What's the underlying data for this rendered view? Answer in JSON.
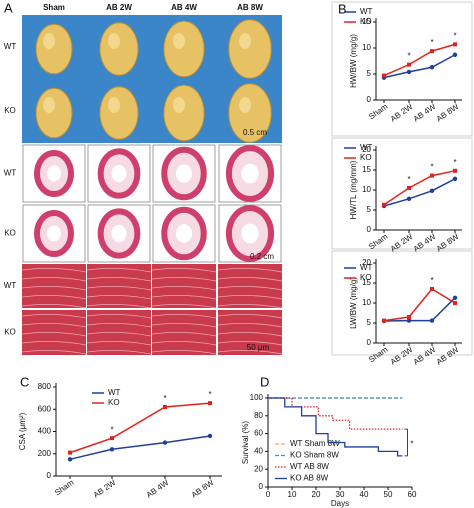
{
  "panel_labels": [
    "A",
    "B",
    "C",
    "D"
  ],
  "panel_a": {
    "columns": [
      "Sham",
      "AB 2W",
      "AB 4W",
      "AB 8W"
    ],
    "rows": [
      "WT",
      "KO",
      "WT",
      "KO",
      "WT",
      "KO"
    ],
    "scale_bars": [
      "0.5 cm",
      "0.2 cm",
      "50 μm"
    ]
  },
  "chart_data": [
    {
      "type": "line",
      "ylabel": "HW/BW (mg/g)",
      "categories": [
        "Sham",
        "AB 2W",
        "AB 4W",
        "AB 8W"
      ],
      "series": [
        {
          "name": "WT",
          "color": "#1f3f9a",
          "values": [
            4.3,
            5.4,
            6.3,
            8.7
          ]
        },
        {
          "name": "KO",
          "color": "#e3221e",
          "values": [
            4.7,
            6.8,
            9.4,
            10.7
          ]
        }
      ],
      "significance": [
        null,
        "*",
        "*",
        "*"
      ],
      "ylim": [
        0,
        15
      ],
      "yticks": [
        0,
        5,
        10,
        15
      ],
      "legend": "upper left"
    },
    {
      "type": "line",
      "ylabel": "HW/TL (mg/mm)",
      "categories": [
        "Sham",
        "AB 2W",
        "AB 4W",
        "AB 8W"
      ],
      "series": [
        {
          "name": "WT",
          "color": "#1f3f9a",
          "values": [
            6.0,
            7.8,
            9.8,
            12.8
          ]
        },
        {
          "name": "KO",
          "color": "#e3221e",
          "values": [
            6.3,
            10.5,
            13.6,
            14.8
          ]
        }
      ],
      "significance": [
        null,
        "*",
        "*",
        "*"
      ],
      "ylim": [
        0,
        20
      ],
      "yticks": [
        0,
        5,
        10,
        15,
        20
      ],
      "legend": "upper left"
    },
    {
      "type": "line",
      "ylabel": "LW/BW (mg/g)",
      "categories": [
        "Sham",
        "AB 2W",
        "AB 4W",
        "AB 8W"
      ],
      "series": [
        {
          "name": "WT",
          "color": "#1f3f9a",
          "values": [
            5.5,
            5.6,
            5.6,
            11.3
          ]
        },
        {
          "name": "KO",
          "color": "#e3221e",
          "values": [
            5.6,
            6.5,
            13.5,
            10.0
          ]
        }
      ],
      "significance": [
        null,
        null,
        "*",
        null
      ],
      "ylim": [
        0,
        20
      ],
      "yticks": [
        0,
        5,
        10,
        15,
        20
      ],
      "legend": "upper left"
    },
    {
      "type": "line",
      "ylabel": "CSA (μm²)",
      "categories": [
        "Sham",
        "AB 2W",
        "AB 4W",
        "AB 8W"
      ],
      "series": [
        {
          "name": "WT",
          "color": "#1f3f9a",
          "values": [
            150,
            240,
            300,
            360
          ]
        },
        {
          "name": "KO",
          "color": "#e3221e",
          "values": [
            210,
            340,
            620,
            655
          ]
        }
      ],
      "significance": [
        null,
        "*",
        "*",
        "*"
      ],
      "ylim": [
        0,
        800
      ],
      "yticks": [
        0,
        200,
        400,
        600,
        800
      ],
      "legend": "upper left"
    },
    {
      "type": "step",
      "xlabel": "Days",
      "ylabel": "Survival (%)",
      "series": [
        {
          "name": "WT Sham 8W",
          "color": "#f4a15c",
          "line_style": "dashed",
          "x": [
            0,
            56
          ],
          "values": [
            100,
            100
          ]
        },
        {
          "name": "KO Sham 8W",
          "color": "#3a8fd6",
          "line_style": "dashed",
          "x": [
            0,
            56
          ],
          "values": [
            100,
            100
          ]
        },
        {
          "name": "WT AB 8W",
          "color": "#d92020",
          "line_style": "dotted",
          "x": [
            0,
            10,
            10,
            21,
            21,
            27,
            27,
            34,
            34,
            56
          ],
          "values": [
            100,
            100,
            90,
            90,
            80,
            80,
            75,
            75,
            65,
            65
          ]
        },
        {
          "name": "KO AB 8W",
          "color": "#1f3f9a",
          "line_style": "solid",
          "x": [
            0,
            7,
            7,
            14,
            14,
            20,
            20,
            25,
            25,
            32,
            32,
            46,
            46,
            54,
            54,
            56
          ],
          "values": [
            100,
            100,
            90,
            90,
            80,
            80,
            60,
            60,
            50,
            50,
            45,
            45,
            40,
            40,
            35,
            35
          ]
        }
      ],
      "annotation": "*",
      "xlim": [
        0,
        60
      ],
      "xticks": [
        0,
        10,
        20,
        30,
        40,
        50,
        60
      ],
      "ylim": [
        0,
        100
      ],
      "yticks": [
        0,
        20,
        40,
        60,
        80,
        100
      ],
      "legend": "lower left"
    }
  ]
}
